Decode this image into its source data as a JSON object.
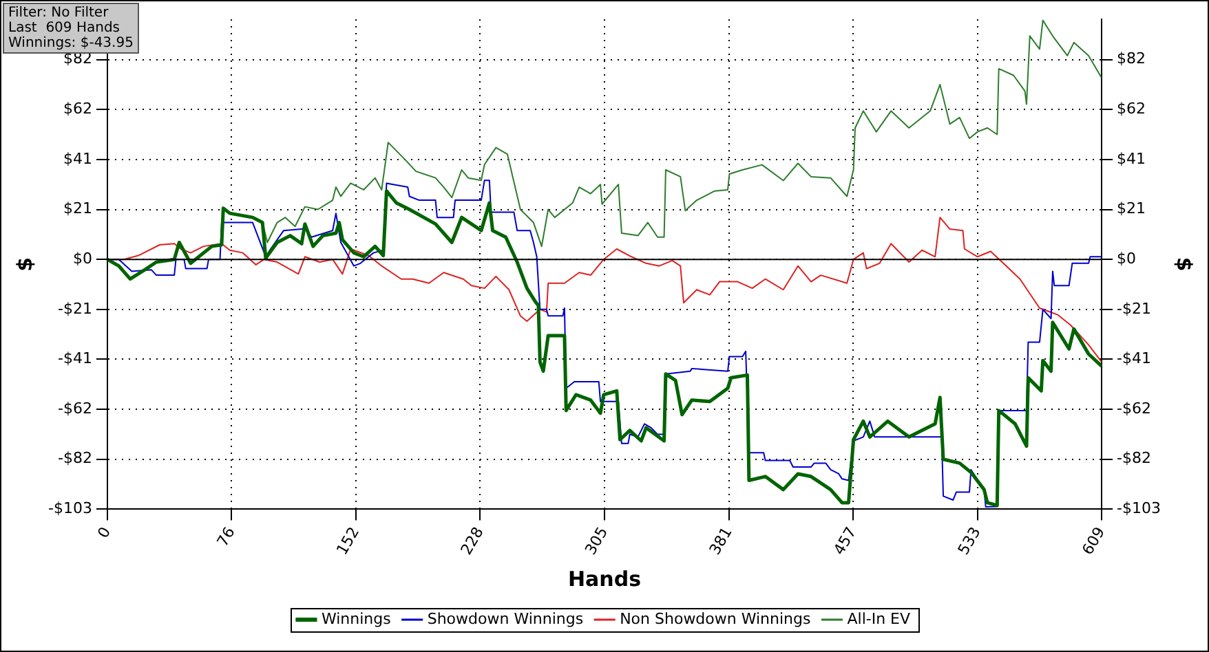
{
  "chart_data": {
    "type": "line",
    "xlabel": "Hands",
    "ylabel": "$",
    "y2label": "$",
    "annotations": [
      "Filter: No Filter",
      "Last  609 Hands",
      "Winnings: $-43.95"
    ],
    "xlim": [
      0,
      609
    ],
    "xticks": [
      0,
      {
        "value": 76.125,
        "label": "76"
      },
      {
        "value": 152.25,
        "label": "152"
      },
      {
        "value": 228.375,
        "label": "228"
      },
      {
        "value": 304.5,
        "label": "305"
      },
      {
        "value": 380.625,
        "label": "381"
      },
      {
        "value": 456.75,
        "label": "457"
      },
      {
        "value": 532.875,
        "label": "533"
      },
      609
    ],
    "ylim": [
      -103,
      99
    ],
    "yticks": [
      {
        "value": -103,
        "label": "-$103"
      },
      {
        "value": -82.4,
        "label": "-$82"
      },
      {
        "value": -61.8,
        "label": "-$62"
      },
      {
        "value": -41.2,
        "label": "-$41"
      },
      {
        "value": -20.6,
        "label": "-$21"
      },
      {
        "value": 0,
        "label": "$0"
      },
      {
        "value": 20.6,
        "label": "$21"
      },
      {
        "value": 41.2,
        "label": "$41"
      },
      {
        "value": 61.8,
        "label": "$62"
      },
      {
        "value": 82.4,
        "label": "$82"
      }
    ],
    "y2lim": [
      -103,
      99
    ],
    "y2ticks": [
      {
        "value": -103,
        "label": "-$103"
      },
      {
        "value": -82.4,
        "label": "-$82"
      },
      {
        "value": -61.8,
        "label": "-$62"
      },
      {
        "value": -41.2,
        "label": "-$41"
      },
      {
        "value": -20.6,
        "label": "-$21"
      },
      {
        "value": 0,
        "label": "$0"
      },
      {
        "value": 20.6,
        "label": "$21"
      },
      {
        "value": 41.2,
        "label": "$41"
      },
      {
        "value": 61.8,
        "label": "$62"
      },
      {
        "value": 82.4,
        "label": "$82"
      }
    ],
    "grid": true,
    "legend": "bottom",
    "marker": "none",
    "line_style": "solid",
    "ref_lines": [
      {
        "axis": "y",
        "value": 0,
        "color": "#000000"
      }
    ],
    "series": [
      {
        "name": "Winnings",
        "color": "#006400",
        "x": [
          0,
          7,
          14,
          24,
          30,
          41,
          44,
          51,
          64,
          70,
          71,
          75,
          89,
          95,
          97,
          104,
          112,
          119,
          121,
          126,
          132,
          140,
          142,
          144,
          151,
          157,
          164,
          169,
          171,
          177,
          185,
          201,
          211,
          217,
          229,
          234,
          236,
          244,
          251,
          257,
          262,
          264,
          265,
          267,
          270,
          280,
          281,
          287,
          296,
          302,
          304,
          312,
          314,
          320,
          327,
          330,
          341,
          342,
          348,
          352,
          358,
          369,
          380,
          382,
          392,
          393,
          403,
          414,
          423,
          431,
          443,
          450,
          454,
          457,
          463,
          467,
          478,
          491,
          507,
          510,
          512,
          522,
          529,
          537,
          539,
          545,
          546,
          556,
          563,
          564,
          572,
          573,
          578,
          579,
          589,
          592,
          601,
          609
        ],
        "values": [
          0,
          -2.7,
          -8.1,
          -3.8,
          -1.1,
          0,
          7.0,
          -1.6,
          5.4,
          6.0,
          21.1,
          19.0,
          17.3,
          15.2,
          0.5,
          7.0,
          9.8,
          6.5,
          14.6,
          5.4,
          9.8,
          10.8,
          15.2,
          8.1,
          2.7,
          1.1,
          5.4,
          1.6,
          28.2,
          23.3,
          20.6,
          14.6,
          7.0,
          17.3,
          11.9,
          23.3,
          11.9,
          9.2,
          -1.1,
          -11.9,
          -17.3,
          -19.0,
          -42.3,
          -46.1,
          -31.4,
          -31.4,
          -62.3,
          -55.8,
          -58.0,
          -63.4,
          -55.8,
          -54.2,
          -74.3,
          -70.5,
          -74.8,
          -69.4,
          -74.8,
          -47.2,
          -49.9,
          -64.0,
          -58.0,
          -58.6,
          -53.1,
          -48.8,
          -47.7,
          -91.1,
          -89.5,
          -94.9,
          -88.4,
          -89.5,
          -94.9,
          -100.3,
          -100.3,
          -74.3,
          -66.7,
          -73.2,
          -66.7,
          -73.2,
          -67.8,
          -56.9,
          -82.4,
          -84.0,
          -87.8,
          -94.9,
          -100.3,
          -101.4,
          -62.3,
          -67.8,
          -77.0,
          -48.8,
          -54.2,
          -41.7,
          -46.1,
          -26.0,
          -36.9,
          -28.7,
          -39.0,
          -44.0
        ]
      },
      {
        "name": "Showdown Winnings",
        "color": "#0000cc",
        "x": [
          0,
          7,
          15,
          27,
          30,
          41,
          42,
          47,
          48,
          61,
          62,
          69,
          70,
          89,
          97,
          100,
          108,
          119,
          121,
          125,
          138,
          140,
          143,
          151,
          155,
          163,
          169,
          171,
          184,
          185,
          191,
          201,
          202,
          212,
          213,
          229,
          231,
          234,
          235,
          249,
          251,
          259,
          261,
          263,
          265,
          269,
          270,
          279,
          280,
          281,
          286,
          301,
          302,
          313,
          315,
          319,
          320,
          325,
          329,
          333,
          337,
          341,
          342,
          357,
          358,
          380,
          381,
          389,
          391,
          393,
          402,
          403,
          418,
          420,
          431,
          433,
          440,
          443,
          448,
          450,
          454,
          457,
          463,
          467,
          470,
          511,
          512,
          518,
          520,
          528,
          529,
          537,
          538,
          545,
          546,
          563,
          564,
          571,
          573,
          578,
          579,
          580,
          589,
          591,
          601,
          602,
          609
        ],
        "values": [
          0,
          0,
          -4.9,
          -4.3,
          -6.5,
          -6.5,
          0,
          0,
          -3.8,
          -3.8,
          0,
          0,
          15.2,
          15.2,
          1.1,
          4.3,
          11.9,
          12.5,
          13.0,
          9.2,
          11.9,
          19.0,
          7.0,
          -2.7,
          -1.6,
          2.7,
          3.8,
          31.4,
          29.8,
          26.0,
          24.4,
          24.4,
          17.3,
          17.3,
          24.4,
          24.4,
          32.6,
          32.6,
          19.5,
          19.5,
          11.9,
          11.9,
          7.0,
          1.1,
          -20.6,
          -20.6,
          -23.3,
          -23.3,
          -20.1,
          -53.1,
          -50.4,
          -50.4,
          -58.6,
          -58.6,
          -75.9,
          -75.9,
          -72.1,
          -73.2,
          -67.8,
          -69.4,
          -72.1,
          -72.1,
          -47.2,
          -46.1,
          -45.0,
          -46.1,
          -40.1,
          -40.1,
          -37.9,
          -79.7,
          -79.7,
          -82.9,
          -82.9,
          -85.6,
          -85.6,
          -84.0,
          -84.0,
          -86.7,
          -88.4,
          -90.5,
          -91.1,
          -74.8,
          -73.2,
          -66.7,
          -73.2,
          -73.2,
          -97.6,
          -99.2,
          -95.9,
          -95.9,
          -86.7,
          -94.9,
          -102,
          -101.9,
          -62.3,
          -62.3,
          -34.1,
          -34.1,
          -20.6,
          -24.4,
          -4.9,
          -10.8,
          -10.8,
          -1.6,
          -1.6,
          1.1,
          1.1
        ]
      },
      {
        "name": "Non Showdown Winnings",
        "color": "#dd2222",
        "x": [
          0,
          10,
          19,
          32,
          41,
          45,
          51,
          59,
          70,
          75,
          83,
          91,
          96,
          104,
          117,
          121,
          130,
          138,
          144,
          149,
          160,
          168,
          180,
          187,
          197,
          206,
          218,
          223,
          231,
          238,
          246,
          253,
          257,
          265,
          269,
          270,
          280,
          289,
          296,
          304,
          312,
          321,
          330,
          338,
          346,
          351,
          353,
          361,
          369,
          375,
          386,
          395,
          403,
          414,
          423,
          431,
          437,
          453,
          457,
          463,
          465,
          473,
          480,
          491,
          499,
          507,
          510,
          516,
          524,
          525,
          533,
          541,
          548,
          559,
          571,
          582,
          590,
          601,
          609
        ],
        "values": [
          0,
          0,
          1.6,
          6.0,
          6.5,
          4.3,
          2.7,
          5.4,
          6.5,
          3.8,
          2.7,
          -2.2,
          0,
          -1.1,
          -6.0,
          1.1,
          -1.1,
          0,
          -6.0,
          4.3,
          1.6,
          -2.7,
          -8.1,
          -8.1,
          -9.8,
          -5.4,
          -8.1,
          -10.8,
          -11.9,
          -7.0,
          -12.5,
          -23.3,
          -25.5,
          -20.6,
          -21.7,
          -9.8,
          -9.8,
          -5.4,
          -6.5,
          0,
          4.3,
          1.1,
          -1.6,
          -2.7,
          -0.5,
          -2.7,
          -17.9,
          -12.5,
          -14.6,
          -9.2,
          -9.2,
          -11.9,
          -8.1,
          -12.5,
          -2.7,
          -9.2,
          -6.5,
          -9.8,
          0,
          2.7,
          -3.8,
          -1.6,
          6.5,
          -1.1,
          3.8,
          1.1,
          17.3,
          12.5,
          11.9,
          4.3,
          1.1,
          3.3,
          -1.1,
          -8.1,
          -20.1,
          -22.8,
          -27.1,
          -35.2,
          -42.3
        ]
      },
      {
        "name": "All-In EV",
        "color": "#2e7d2e",
        "x": [
          0,
          7,
          14,
          24,
          30,
          41,
          44,
          51,
          64,
          70,
          71,
          75,
          89,
          95,
          98,
          104,
          109,
          115,
          121,
          129,
          138,
          140,
          143,
          149,
          157,
          164,
          168,
          172,
          183,
          189,
          201,
          206,
          211,
          217,
          221,
          229,
          231,
          238,
          245,
          253,
          261,
          266,
          270,
          274,
          285,
          289,
          296,
          302,
          303,
          313,
          315,
          325,
          331,
          337,
          341,
          342,
          351,
          354,
          361,
          372,
          380,
          381,
          389,
          401,
          414,
          423,
          431,
          443,
          453,
          457,
          458,
          463,
          471,
          480,
          491,
          504,
          510,
          516,
          522,
          528,
          533,
          539,
          545,
          546,
          555,
          562,
          563,
          565,
          571,
          573,
          579,
          588,
          592,
          601,
          609
        ],
        "values": [
          0,
          -2.7,
          -8.1,
          -3.8,
          -1.1,
          0,
          7.0,
          -1.6,
          5.4,
          6.0,
          21.1,
          19.0,
          17.3,
          15.2,
          7.0,
          15.2,
          17.3,
          13.6,
          21.7,
          20.6,
          24.4,
          29.8,
          26.0,
          31.4,
          28.7,
          33.6,
          28.7,
          48.2,
          40.7,
          36.3,
          33.6,
          29.8,
          25.5,
          36.9,
          33.6,
          32.6,
          39.1,
          46.1,
          43.4,
          20.6,
          15.2,
          5.4,
          20.6,
          17.3,
          23.3,
          29.8,
          27.1,
          30.9,
          22.8,
          30.9,
          10.8,
          9.8,
          15.2,
          9.2,
          9.2,
          36.9,
          34.1,
          20.1,
          24.4,
          28.2,
          28.7,
          35.2,
          36.9,
          39.0,
          32.5,
          39.6,
          34.1,
          33.6,
          26.0,
          36.9,
          54.2,
          61.2,
          52.6,
          61.2,
          54.2,
          61.2,
          72.1,
          55.8,
          58.5,
          49.9,
          52.6,
          54.2,
          51.5,
          78.6,
          75.9,
          69.4,
          64.0,
          92.1,
          86.7,
          98.6,
          92.1,
          84.0,
          89.4,
          84.0,
          74.8
        ]
      }
    ]
  }
}
